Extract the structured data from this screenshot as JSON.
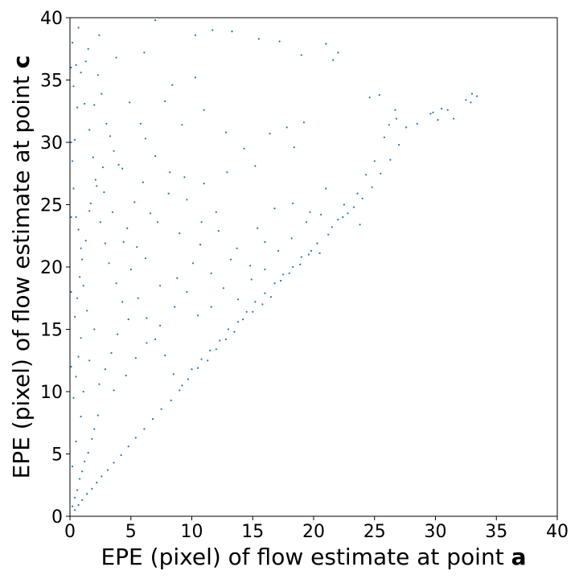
{
  "chart_data": {
    "type": "scatter",
    "title": "",
    "xlabel_prefix": "EPE (pixel) of flow estimate at point ",
    "xlabel_bold": "a",
    "ylabel_prefix": "EPE (pixel) of flow estimate at point ",
    "ylabel_bold": "c",
    "xlim": [
      0,
      40
    ],
    "ylim": [
      0,
      40
    ],
    "xticks": [
      0,
      5,
      10,
      15,
      20,
      25,
      30,
      35,
      40
    ],
    "yticks": [
      0,
      5,
      10,
      15,
      20,
      25,
      30,
      35,
      40
    ],
    "grid": false,
    "legend": "none",
    "colors": {
      "points": "#1f77b4"
    },
    "series": [
      {
        "points": [
          [
            0.2,
            0.8
          ],
          [
            0.4,
            1.5
          ],
          [
            0.6,
            2.1
          ],
          [
            0.8,
            3.0
          ],
          [
            1.0,
            3.6
          ],
          [
            1.2,
            4.4
          ],
          [
            1.5,
            5.1
          ],
          [
            1.8,
            6.2
          ],
          [
            2.0,
            7.0
          ],
          [
            2.3,
            8.1
          ],
          [
            0.3,
            9.5
          ],
          [
            0.5,
            11.2
          ],
          [
            0.7,
            12.8
          ],
          [
            0.9,
            14.3
          ],
          [
            0.4,
            16.0
          ],
          [
            0.6,
            17.5
          ],
          [
            0.8,
            19.2
          ],
          [
            1.0,
            20.6
          ],
          [
            1.3,
            22.1
          ],
          [
            0.5,
            24.0
          ],
          [
            0.3,
            26.3
          ],
          [
            0.2,
            28.5
          ],
          [
            0.4,
            30.2
          ],
          [
            0.6,
            32.8
          ],
          [
            0.3,
            34.5
          ],
          [
            0.5,
            36.2
          ],
          [
            0.2,
            38.0
          ],
          [
            0.7,
            39.2
          ],
          [
            1.5,
            37.5
          ],
          [
            2.3,
            35.4
          ],
          [
            2.6,
            33.9
          ],
          [
            3.8,
            36.8
          ],
          [
            3.3,
            30.5
          ],
          [
            4.0,
            28.2
          ],
          [
            2.8,
            26.0
          ],
          [
            3.5,
            24.4
          ],
          [
            4.4,
            22.0
          ],
          [
            5.0,
            19.8
          ],
          [
            5.6,
            17.5
          ],
          [
            6.3,
            15.9
          ],
          [
            7.0,
            14.2
          ],
          [
            7.8,
            12.9
          ],
          [
            8.5,
            11.4
          ],
          [
            9.2,
            10.5
          ],
          [
            10.0,
            11.8
          ],
          [
            10.8,
            12.6
          ],
          [
            11.5,
            13.3
          ],
          [
            12.3,
            14.1
          ],
          [
            13.0,
            15.0
          ],
          [
            13.8,
            15.6
          ],
          [
            14.5,
            16.4
          ],
          [
            15.2,
            17.2
          ],
          [
            16.0,
            17.9
          ],
          [
            16.8,
            18.7
          ],
          [
            17.5,
            19.4
          ],
          [
            18.3,
            20.0
          ],
          [
            19.0,
            20.8
          ],
          [
            19.8,
            21.3
          ],
          [
            20.5,
            21.1
          ],
          [
            21.5,
            23.2
          ],
          [
            22.4,
            24.0
          ],
          [
            23.3,
            24.8
          ],
          [
            24.0,
            25.5
          ],
          [
            24.8,
            26.4
          ],
          [
            25.5,
            27.5
          ],
          [
            26.3,
            28.6
          ],
          [
            27.0,
            29.8
          ],
          [
            27.6,
            31.2
          ],
          [
            28.5,
            31.5
          ],
          [
            29.6,
            32.3
          ],
          [
            30.2,
            31.8
          ],
          [
            31.5,
            31.9
          ],
          [
            32.5,
            33.4
          ],
          [
            33.4,
            33.7
          ],
          [
            33.0,
            33.9
          ],
          [
            32.9,
            33.2
          ],
          [
            31.0,
            32.6
          ],
          [
            30.5,
            32.7
          ],
          [
            29.8,
            32.4
          ],
          [
            26.8,
            31.9
          ],
          [
            26.2,
            31.4
          ],
          [
            25.8,
            30.4
          ],
          [
            25.0,
            28.5
          ],
          [
            24.3,
            27.4
          ],
          [
            23.6,
            25.9
          ],
          [
            22.8,
            24.3
          ],
          [
            22.0,
            23.8
          ],
          [
            21.2,
            22.6
          ],
          [
            20.3,
            21.9
          ],
          [
            19.6,
            21.0
          ],
          [
            18.9,
            20.2
          ],
          [
            18.0,
            19.5
          ],
          [
            17.3,
            18.9
          ],
          [
            16.5,
            17.6
          ],
          [
            15.8,
            17.0
          ],
          [
            15.0,
            16.4
          ],
          [
            14.2,
            15.8
          ],
          [
            13.5,
            14.8
          ],
          [
            12.8,
            14.2
          ],
          [
            12.0,
            13.4
          ],
          [
            11.3,
            12.5
          ],
          [
            10.5,
            11.9
          ],
          [
            9.7,
            11.0
          ],
          [
            9.0,
            10.1
          ],
          [
            8.3,
            9.3
          ],
          [
            7.5,
            8.6
          ],
          [
            6.8,
            7.8
          ],
          [
            6.1,
            7.0
          ],
          [
            5.4,
            6.3
          ],
          [
            4.8,
            5.6
          ],
          [
            4.2,
            4.9
          ],
          [
            3.6,
            4.3
          ],
          [
            3.1,
            3.7
          ],
          [
            2.6,
            3.2
          ],
          [
            2.2,
            2.7
          ],
          [
            1.8,
            2.2
          ],
          [
            1.4,
            1.8
          ],
          [
            1.0,
            1.3
          ],
          [
            0.7,
            0.9
          ],
          [
            0.4,
            0.5
          ],
          [
            7.0,
            39.8
          ],
          [
            10.3,
            38.6
          ],
          [
            11.7,
            39.0
          ],
          [
            13.3,
            38.9
          ],
          [
            15.5,
            38.3
          ],
          [
            17.2,
            38.1
          ],
          [
            19.0,
            37.0
          ],
          [
            21.0,
            37.9
          ],
          [
            22.0,
            37.2
          ],
          [
            21.6,
            36.6
          ],
          [
            10.3,
            35.2
          ],
          [
            8.4,
            34.6
          ],
          [
            7.8,
            33.3
          ],
          [
            9.2,
            31.4
          ],
          [
            11.0,
            32.6
          ],
          [
            12.8,
            30.8
          ],
          [
            14.3,
            29.5
          ],
          [
            16.4,
            30.7
          ],
          [
            17.8,
            31.2
          ],
          [
            19.2,
            31.6
          ],
          [
            24.6,
            33.6
          ],
          [
            25.4,
            33.8
          ],
          [
            26.7,
            32.6
          ],
          [
            18.4,
            29.6
          ],
          [
            15.2,
            28.1
          ],
          [
            12.9,
            27.6
          ],
          [
            11.0,
            26.7
          ],
          [
            9.4,
            27.2
          ],
          [
            8.1,
            25.9
          ],
          [
            6.6,
            24.3
          ],
          [
            7.2,
            23.6
          ],
          [
            9.0,
            22.7
          ],
          [
            10.7,
            21.8
          ],
          [
            12.2,
            22.9
          ],
          [
            13.7,
            21.5
          ],
          [
            15.4,
            23.1
          ],
          [
            16.8,
            24.7
          ],
          [
            18.3,
            25.1
          ],
          [
            19.7,
            24.4
          ],
          [
            21.0,
            26.3
          ],
          [
            22.5,
            25.0
          ],
          [
            23.8,
            23.4
          ],
          [
            16.0,
            22.0
          ],
          [
            14.8,
            20.1
          ],
          [
            13.2,
            20.6
          ],
          [
            11.6,
            19.5
          ],
          [
            10.1,
            20.3
          ],
          [
            8.8,
            19.1
          ],
          [
            7.4,
            18.5
          ],
          [
            6.2,
            20.7
          ],
          [
            5.5,
            21.6
          ],
          [
            4.7,
            23.1
          ],
          [
            5.3,
            25.2
          ],
          [
            6.0,
            26.8
          ],
          [
            4.3,
            27.9
          ],
          [
            3.6,
            29.3
          ],
          [
            5.8,
            31.5
          ],
          [
            4.9,
            33.2
          ],
          [
            6.1,
            37.2
          ],
          [
            2.4,
            38.6
          ],
          [
            0.9,
            35.6
          ],
          [
            1.2,
            33.1
          ],
          [
            1.6,
            31.0
          ],
          [
            1.9,
            28.8
          ],
          [
            2.1,
            27.0
          ],
          [
            1.7,
            25.1
          ],
          [
            2.5,
            23.6
          ],
          [
            2.9,
            21.9
          ],
          [
            3.2,
            20.3
          ],
          [
            3.8,
            18.7
          ],
          [
            4.3,
            17.2
          ],
          [
            4.8,
            15.8
          ],
          [
            3.9,
            14.6
          ],
          [
            3.4,
            13.1
          ],
          [
            2.9,
            11.8
          ],
          [
            2.4,
            10.6
          ],
          [
            3.6,
            10.1
          ],
          [
            4.6,
            11.3
          ],
          [
            5.4,
            12.7
          ],
          [
            6.3,
            13.9
          ],
          [
            7.4,
            15.3
          ],
          [
            8.6,
            16.8
          ],
          [
            9.6,
            18.0
          ],
          [
            10.5,
            16.1
          ],
          [
            11.6,
            16.8
          ],
          [
            12.6,
            18.3
          ],
          [
            13.8,
            17.4
          ],
          [
            14.9,
            19.0
          ],
          [
            16.0,
            19.8
          ],
          [
            17.1,
            21.3
          ],
          [
            18.2,
            22.3
          ],
          [
            19.4,
            23.6
          ],
          [
            20.6,
            24.2
          ],
          [
            12.0,
            24.4
          ],
          [
            10.8,
            23.6
          ],
          [
            9.6,
            25.4
          ],
          [
            8.2,
            27.6
          ],
          [
            7.0,
            28.9
          ],
          [
            6.2,
            30.3
          ],
          [
            0.1,
            12.0
          ],
          [
            0.1,
            18.0
          ],
          [
            0.1,
            24.0
          ],
          [
            0.1,
            30.0
          ],
          [
            0.1,
            36.0
          ],
          [
            0.2,
            4.0
          ],
          [
            0.5,
            6.0
          ],
          [
            0.9,
            8.0
          ],
          [
            1.1,
            10.0
          ],
          [
            1.6,
            12.5
          ],
          [
            2.0,
            15.0
          ],
          [
            1.4,
            16.5
          ],
          [
            1.1,
            18.5
          ],
          [
            0.9,
            21.5
          ],
          [
            0.7,
            23.0
          ],
          [
            1.6,
            24.5
          ],
          [
            2.2,
            26.5
          ],
          [
            2.7,
            28.0
          ],
          [
            3.0,
            31.5
          ],
          [
            2.0,
            33.0
          ],
          [
            1.3,
            36.5
          ]
        ]
      }
    ]
  }
}
